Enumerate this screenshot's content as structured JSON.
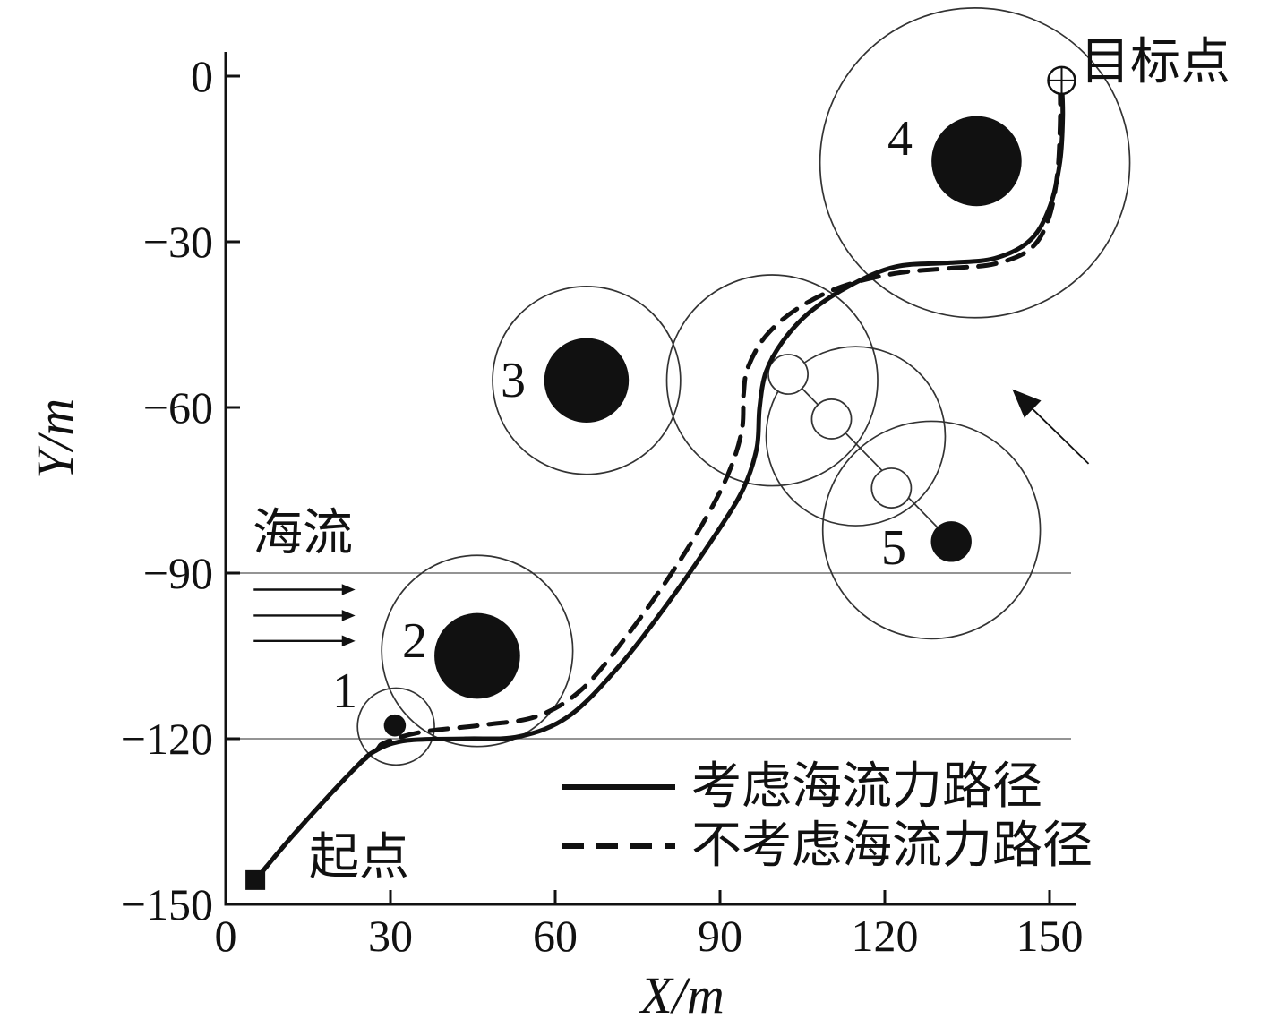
{
  "figure": {
    "background": "#ffffff",
    "ink": "#111111"
  },
  "chart_data": {
    "type": "line",
    "title": "",
    "xlabel": "X/m",
    "ylabel": "Y/m",
    "xlim": [
      0,
      150
    ],
    "ylim": [
      -150,
      0
    ],
    "x_ticks": [
      0,
      30,
      60,
      90,
      120,
      150
    ],
    "y_ticks": [
      0,
      -30,
      -60,
      -90,
      -120,
      -150
    ],
    "gridlines_y": [
      -90,
      -120
    ],
    "grid": "partial-horizontal",
    "legend": {
      "position": "inside-bottom-right",
      "items": [
        {
          "label": "考虑海流力路径",
          "style": "solid"
        },
        {
          "label": "不考虑海流力路径",
          "style": "dashed"
        }
      ]
    },
    "annotations": {
      "current_label": "海流",
      "start_label": "起点",
      "target_label": "目标点"
    },
    "obstacle_labels": [
      "1",
      "2",
      "3",
      "4",
      "5"
    ],
    "obstacles": [
      {
        "id": "1",
        "core": {
          "x": 30.8,
          "y": -117.6,
          "r": 2.0
        },
        "boundary": [
          {
            "x": 31.0,
            "y": -117.8,
            "r": 7.0
          }
        ]
      },
      {
        "id": "2",
        "core": {
          "x": 45.8,
          "y": -105.0,
          "r": 7.8
        },
        "boundary": [
          {
            "x": 45.8,
            "y": -104.1,
            "r": 17.4
          }
        ]
      },
      {
        "id": "3",
        "core": {
          "x": 65.7,
          "y": -55.1,
          "r": 7.7
        },
        "boundary": [
          {
            "x": 65.7,
            "y": -55.1,
            "r": 17.1
          }
        ]
      },
      {
        "id": "4",
        "core": {
          "x": 136.7,
          "y": -15.4,
          "r": 8.2
        },
        "boundary": [
          {
            "x": 136.4,
            "y": -15.7,
            "r": 28.2
          }
        ]
      },
      {
        "id": "5",
        "core": {
          "x": 132.1,
          "y": -84.3,
          "r": 3.7
        },
        "boundary": [
          {
            "x": 99.5,
            "y": -55.1,
            "r": 19.2
          },
          {
            "x": 114.7,
            "y": -65.2,
            "r": 16.3
          },
          {
            "x": 128.5,
            "y": -82.2,
            "r": 19.8
          }
        ],
        "ghosts": [
          {
            "x": 102.4,
            "y": -54.0,
            "r": 3.6
          },
          {
            "x": 110.3,
            "y": -62.1,
            "r": 3.6
          },
          {
            "x": 121.2,
            "y": -74.6,
            "r": 3.6
          }
        ],
        "trajectory": {
          "from": {
            "x": 99.2,
            "y": -50.7
          },
          "to": {
            "x": 132.1,
            "y": -84.3
          }
        },
        "direction_arrow": {
          "from": {
            "x": 157.1,
            "y": -70.2
          },
          "to": {
            "x": 143.2,
            "y": -56.7
          }
        }
      }
    ],
    "start": {
      "x": 5.4,
      "y": -145.6
    },
    "target": {
      "x": 152.2,
      "y": -0.8
    },
    "current_arrows": [
      {
        "x1": 5.1,
        "y1": -93.0,
        "x2": 23.6,
        "y2": -93.0
      },
      {
        "x1": 5.1,
        "y1": -97.7,
        "x2": 23.6,
        "y2": -97.7
      },
      {
        "x1": 5.1,
        "y1": -102.3,
        "x2": 23.6,
        "y2": -102.3
      }
    ],
    "series": [
      {
        "name": "考虑海流力路径",
        "style": "solid",
        "points": [
          [
            5.4,
            -145.6
          ],
          [
            12.7,
            -137.0
          ],
          [
            23.3,
            -125.6
          ],
          [
            27.4,
            -122.1
          ],
          [
            33.1,
            -120.3
          ],
          [
            43.7,
            -120.0
          ],
          [
            53.5,
            -119.6
          ],
          [
            62.5,
            -115.9
          ],
          [
            71.5,
            -107.0
          ],
          [
            80.4,
            -95.6
          ],
          [
            89.4,
            -82.7
          ],
          [
            94.3,
            -74.6
          ],
          [
            96.7,
            -67.3
          ],
          [
            97.2,
            -60.0
          ],
          [
            98.4,
            -53.5
          ],
          [
            101.6,
            -47.8
          ],
          [
            106.5,
            -42.6
          ],
          [
            113.9,
            -37.8
          ],
          [
            122.0,
            -34.5
          ],
          [
            131.8,
            -33.8
          ],
          [
            140.0,
            -33.0
          ],
          [
            146.5,
            -29.7
          ],
          [
            150.1,
            -23.5
          ],
          [
            151.9,
            -15.4
          ],
          [
            152.4,
            -7.3
          ],
          [
            152.2,
            -0.8
          ]
        ]
      },
      {
        "name": "不考虑海流力路径",
        "style": "dashed",
        "points": [
          [
            5.4,
            -145.6
          ],
          [
            12.7,
            -137.0
          ],
          [
            23.3,
            -125.6
          ],
          [
            27.4,
            -122.1
          ],
          [
            29.0,
            -120.7
          ],
          [
            35.6,
            -118.8
          ],
          [
            47.0,
            -117.5
          ],
          [
            56.8,
            -115.9
          ],
          [
            64.9,
            -111.0
          ],
          [
            73.1,
            -101.3
          ],
          [
            81.2,
            -90.0
          ],
          [
            87.8,
            -79.4
          ],
          [
            91.8,
            -71.3
          ],
          [
            94.0,
            -64.0
          ],
          [
            94.3,
            -57.5
          ],
          [
            95.1,
            -52.7
          ],
          [
            98.4,
            -47.0
          ],
          [
            104.1,
            -42.1
          ],
          [
            112.2,
            -38.1
          ],
          [
            122.0,
            -35.7
          ],
          [
            131.8,
            -34.8
          ],
          [
            140.0,
            -34.0
          ],
          [
            146.5,
            -31.3
          ],
          [
            149.8,
            -25.9
          ],
          [
            151.4,
            -17.8
          ],
          [
            151.9,
            -8.9
          ],
          [
            151.9,
            -1.6
          ]
        ]
      }
    ]
  }
}
